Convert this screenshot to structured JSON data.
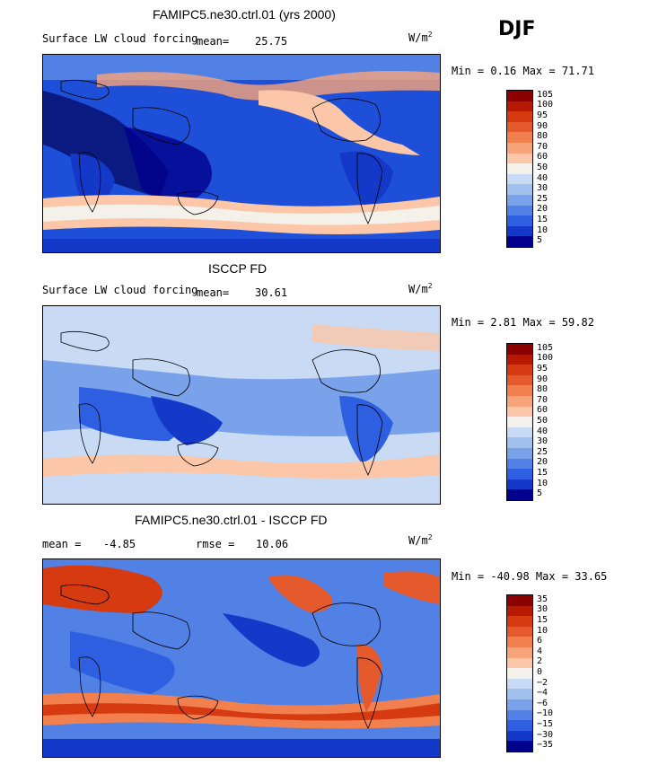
{
  "season": "DJF",
  "units": "W/m",
  "units_exp": "2",
  "panels": [
    {
      "title": "FAMIPC5.ne30.ctrl.01 (yrs 2000)",
      "field": "Surface LW cloud forcing",
      "mean_label": "mean=",
      "mean": "25.75",
      "minmax": "Min =   0.16 Max =  71.71",
      "colorbar": [
        "105",
        "100",
        "95",
        "90",
        "80",
        "70",
        "60",
        "50",
        "40",
        "30",
        "25",
        "20",
        "15",
        "10",
        "5"
      ]
    },
    {
      "title": "ISCCP FD",
      "field": "Surface LW cloud forcing",
      "mean_label": "mean=",
      "mean": "30.61",
      "minmax": "Min =   2.81 Max =  59.82",
      "colorbar": [
        "105",
        "100",
        "95",
        "90",
        "80",
        "70",
        "60",
        "50",
        "40",
        "30",
        "25",
        "20",
        "15",
        "10",
        "5"
      ]
    },
    {
      "title": "FAMIPC5.ne30.ctrl.01 - ISCCP FD",
      "mean_label": "mean =",
      "mean": "-4.85",
      "rmse_label": "rmse =",
      "rmse": "10.06",
      "minmax": "Min = -40.98 Max =  33.65",
      "colorbar": [
        "35",
        "30",
        "15",
        "10",
        "6",
        "4",
        "2",
        "0",
        "−2",
        "−4",
        "−6",
        "−10",
        "−15",
        "−30",
        "−35"
      ]
    }
  ],
  "colors": {
    "scale": [
      "#8b0000",
      "#b51a00",
      "#d53a10",
      "#e55a2c",
      "#f2804e",
      "#f8a47a",
      "#fbc7a8",
      "#f4f0ea",
      "#c8daf4",
      "#a0c0ee",
      "#7aa2ea",
      "#5281e6",
      "#2d5fe0",
      "#1438c8",
      "#00008c"
    ],
    "coast": "#000000"
  },
  "chart_data": [
    {
      "type": "heatmap",
      "title": "FAMIPC5.ne30.ctrl.01 (yrs 2000)",
      "variable": "Surface LW cloud forcing",
      "units": "W/m^2",
      "mean": 25.75,
      "min": 0.16,
      "max": 71.71,
      "contour_levels": [
        5,
        10,
        15,
        20,
        25,
        30,
        40,
        50,
        60,
        70,
        80,
        90,
        95,
        100,
        105
      ]
    },
    {
      "type": "heatmap",
      "title": "ISCCP FD",
      "variable": "Surface LW cloud forcing",
      "units": "W/m^2",
      "mean": 30.61,
      "min": 2.81,
      "max": 59.82,
      "contour_levels": [
        5,
        10,
        15,
        20,
        25,
        30,
        40,
        50,
        60,
        70,
        80,
        90,
        95,
        100,
        105
      ]
    },
    {
      "type": "heatmap",
      "title": "FAMIPC5.ne30.ctrl.01 - ISCCP FD",
      "units": "W/m^2",
      "mean": -4.85,
      "rmse": 10.06,
      "min": -40.98,
      "max": 33.65,
      "contour_levels": [
        -35,
        -30,
        -15,
        -10,
        -6,
        -4,
        -2,
        0,
        2,
        4,
        6,
        10,
        15,
        30,
        35
      ]
    }
  ]
}
